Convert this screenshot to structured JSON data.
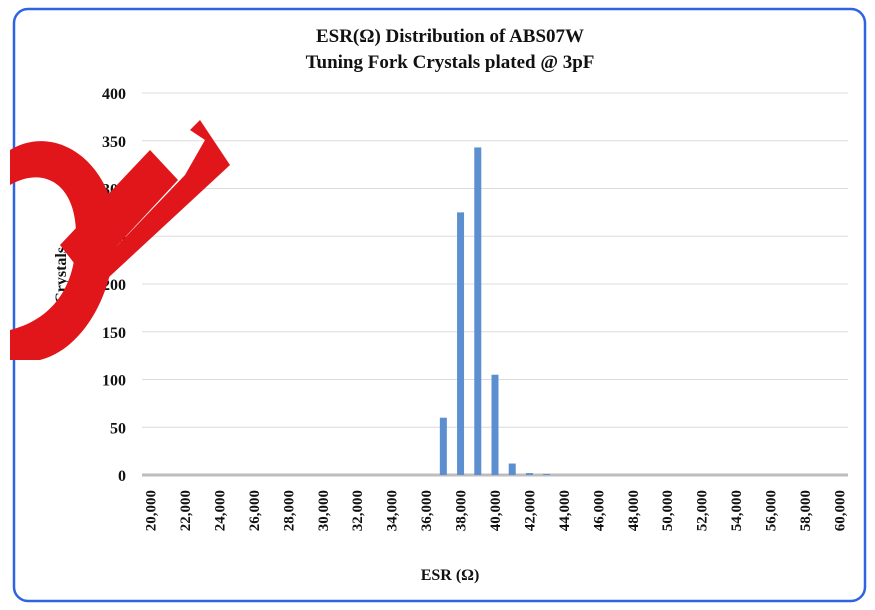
{
  "chart_data": {
    "type": "bar",
    "title": "ESR(Ω) Distribution of ABS07W",
    "subtitle": "Tuning Fork Crystals plated @ 3pF",
    "x_label": "ESR (Ω)",
    "y_label": "# of Crystals",
    "categories": [
      "20,000",
      null,
      "22,000",
      null,
      "24,000",
      null,
      "26,000",
      null,
      "28,000",
      null,
      "30,000",
      null,
      "32,000",
      null,
      "34,000",
      null,
      "36,000",
      null,
      "38,000",
      null,
      "40,000",
      null,
      "42,000",
      null,
      "44,000",
      null,
      "46,000",
      null,
      "48,000",
      null,
      "50,000",
      null,
      "52,000",
      null,
      "54,000",
      null,
      "56,000",
      null,
      "58,000",
      null,
      "60,000"
    ],
    "values": [
      0,
      0,
      0,
      0,
      0,
      0,
      0,
      0,
      0,
      0,
      0,
      0,
      0,
      0,
      0,
      0,
      0,
      60,
      275,
      343,
      105,
      12,
      2,
      1,
      0,
      0,
      0,
      0,
      0,
      0,
      0,
      0,
      0,
      0,
      0,
      0,
      0,
      0,
      0,
      0,
      0
    ],
    "color": "#5b8fd0",
    "ylim": [
      0,
      400
    ],
    "yticks": [
      0,
      50,
      100,
      150,
      200,
      250,
      300,
      350,
      400
    ],
    "grid": true
  }
}
